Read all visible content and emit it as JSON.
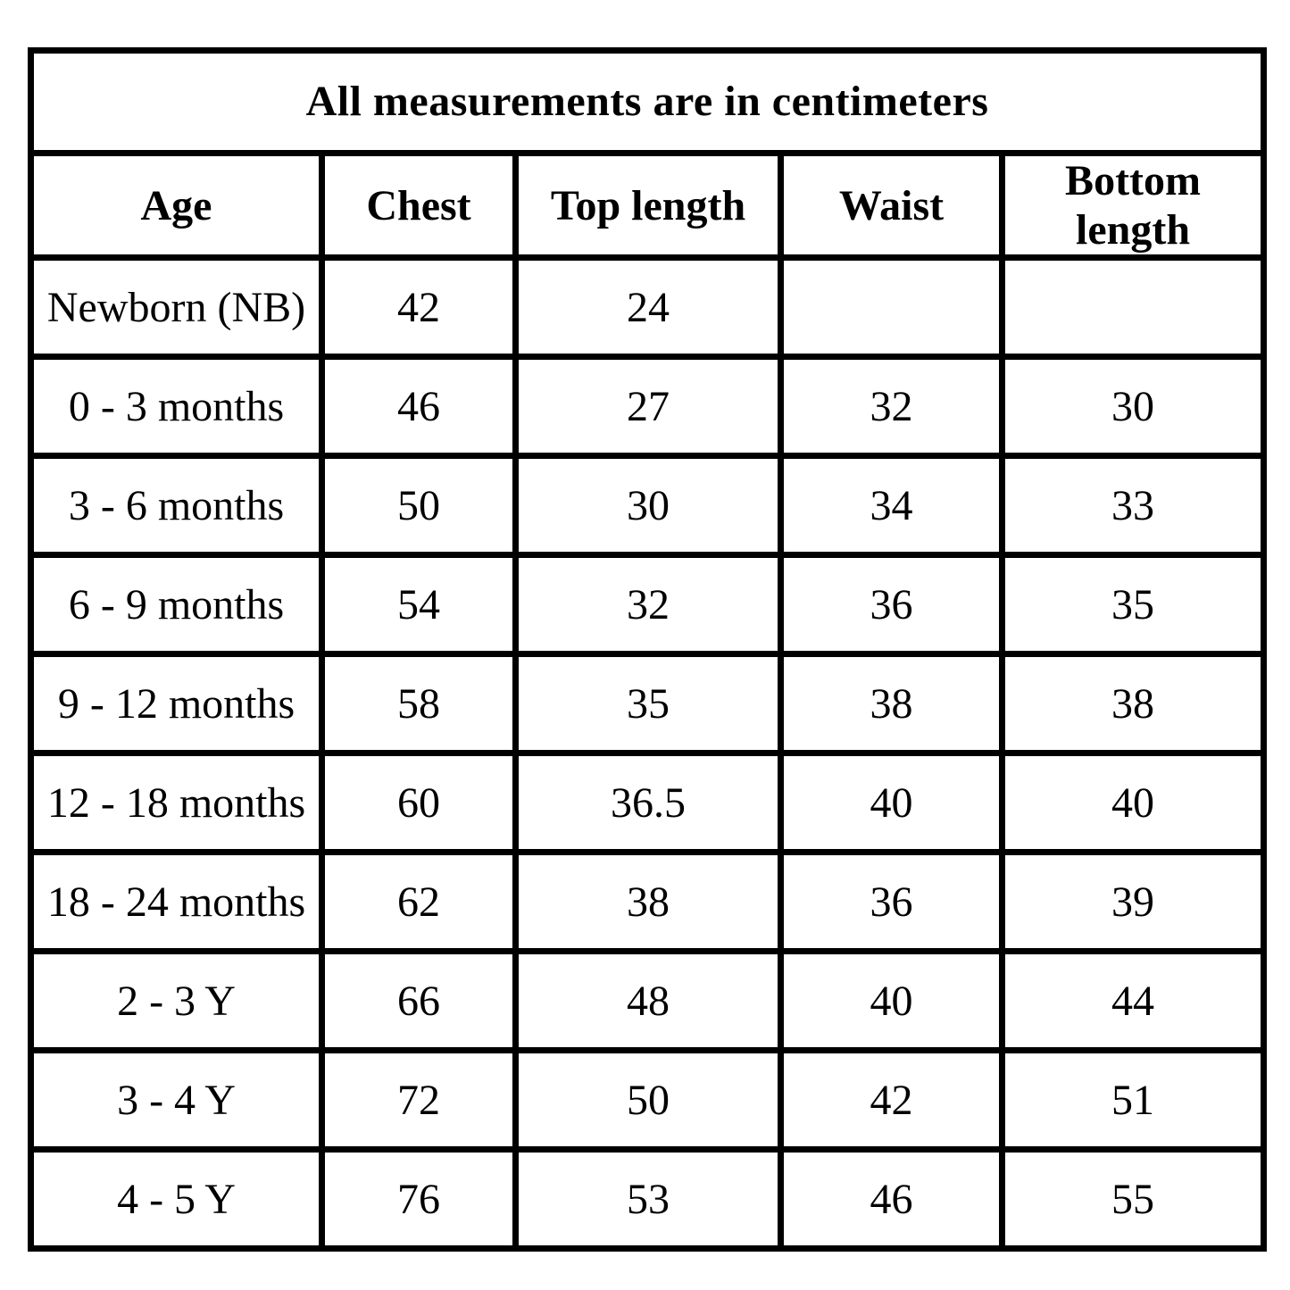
{
  "page": {
    "background": "#ffffff"
  },
  "table": {
    "title": "All measurements are in centimeters",
    "units": "centimeters",
    "columns": [
      "Age",
      "Chest",
      "Top length",
      "Waist",
      "Bottom length"
    ],
    "rows": [
      [
        "Newborn (NB)",
        "42",
        "24",
        "",
        ""
      ],
      [
        "0 - 3 months",
        "46",
        "27",
        "32",
        "30"
      ],
      [
        "3 - 6 months",
        "50",
        "30",
        "34",
        "33"
      ],
      [
        "6 - 9 months",
        "54",
        "32",
        "36",
        "35"
      ],
      [
        "9 - 12 months",
        "58",
        "35",
        "38",
        "38"
      ],
      [
        "12 - 18 months",
        "60",
        "36.5",
        "40",
        "40"
      ],
      [
        "18 - 24 months",
        "62",
        "38",
        "36",
        "39"
      ],
      [
        "2 - 3 Y",
        "66",
        "48",
        "40",
        "44"
      ],
      [
        "3 - 4 Y",
        "72",
        "50",
        "42",
        "51"
      ],
      [
        "4 - 5 Y",
        "76",
        "53",
        "46",
        "55"
      ]
    ],
    "colors": {
      "border": "#000000",
      "text": "#000000",
      "background": "#ffffff"
    }
  }
}
